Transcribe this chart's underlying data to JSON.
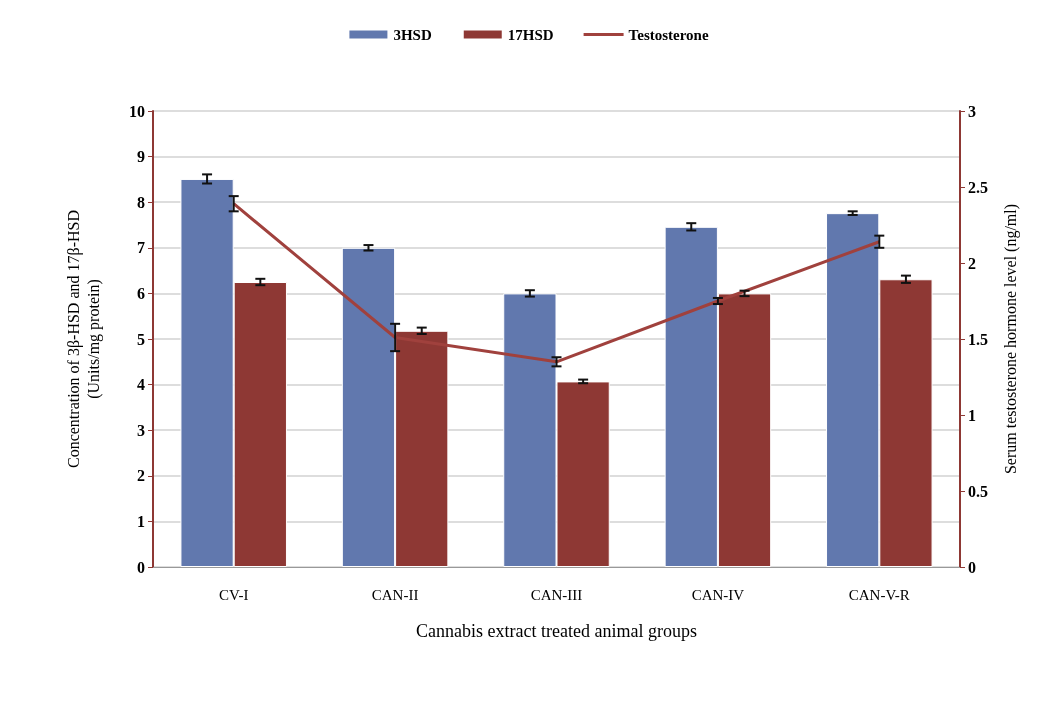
{
  "chart_data": {
    "type": "bar",
    "xlabel": "Cannabis extract treated animal groups",
    "ylabel": "Concentration of 3β-HSD and 17β-HSD\n(Units/mg protein)",
    "y2label": "Serum testosterone hormone level (ng/ml)",
    "categories": [
      "CV-I",
      "CAN-II",
      "CAN-III",
      "CAN-IV",
      "CAN-V-R"
    ],
    "series": [
      {
        "name": "3HSD",
        "color": "#6178ae",
        "values": [
          8.51,
          7.0,
          6.0,
          7.46,
          7.76
        ],
        "errors": [
          0.1,
          0.06,
          0.07,
          0.08,
          0.04
        ]
      },
      {
        "name": "17HSD",
        "color": "#8e3834",
        "values": [
          6.25,
          5.18,
          4.07,
          6.0,
          6.31
        ],
        "errors": [
          0.07,
          0.07,
          0.04,
          0.06,
          0.08
        ]
      },
      {
        "name": "Testosterone",
        "type": "line",
        "axis": "y2",
        "color": "#a0413d",
        "values": [
          2.39,
          1.51,
          1.35,
          1.75,
          2.14
        ],
        "errors": [
          0.05,
          0.09,
          0.03,
          0.02,
          0.04
        ]
      }
    ],
    "ylim": [
      0,
      10
    ],
    "yticks": [
      0,
      1,
      2,
      3,
      4,
      5,
      6,
      7,
      8,
      9,
      10
    ],
    "y2lim": [
      0,
      3
    ],
    "y2ticks": [
      0,
      0.5,
      1,
      1.5,
      2,
      2.5,
      3
    ],
    "grid": "y",
    "legend": "top",
    "marker": "none",
    "line_style": "solid"
  }
}
